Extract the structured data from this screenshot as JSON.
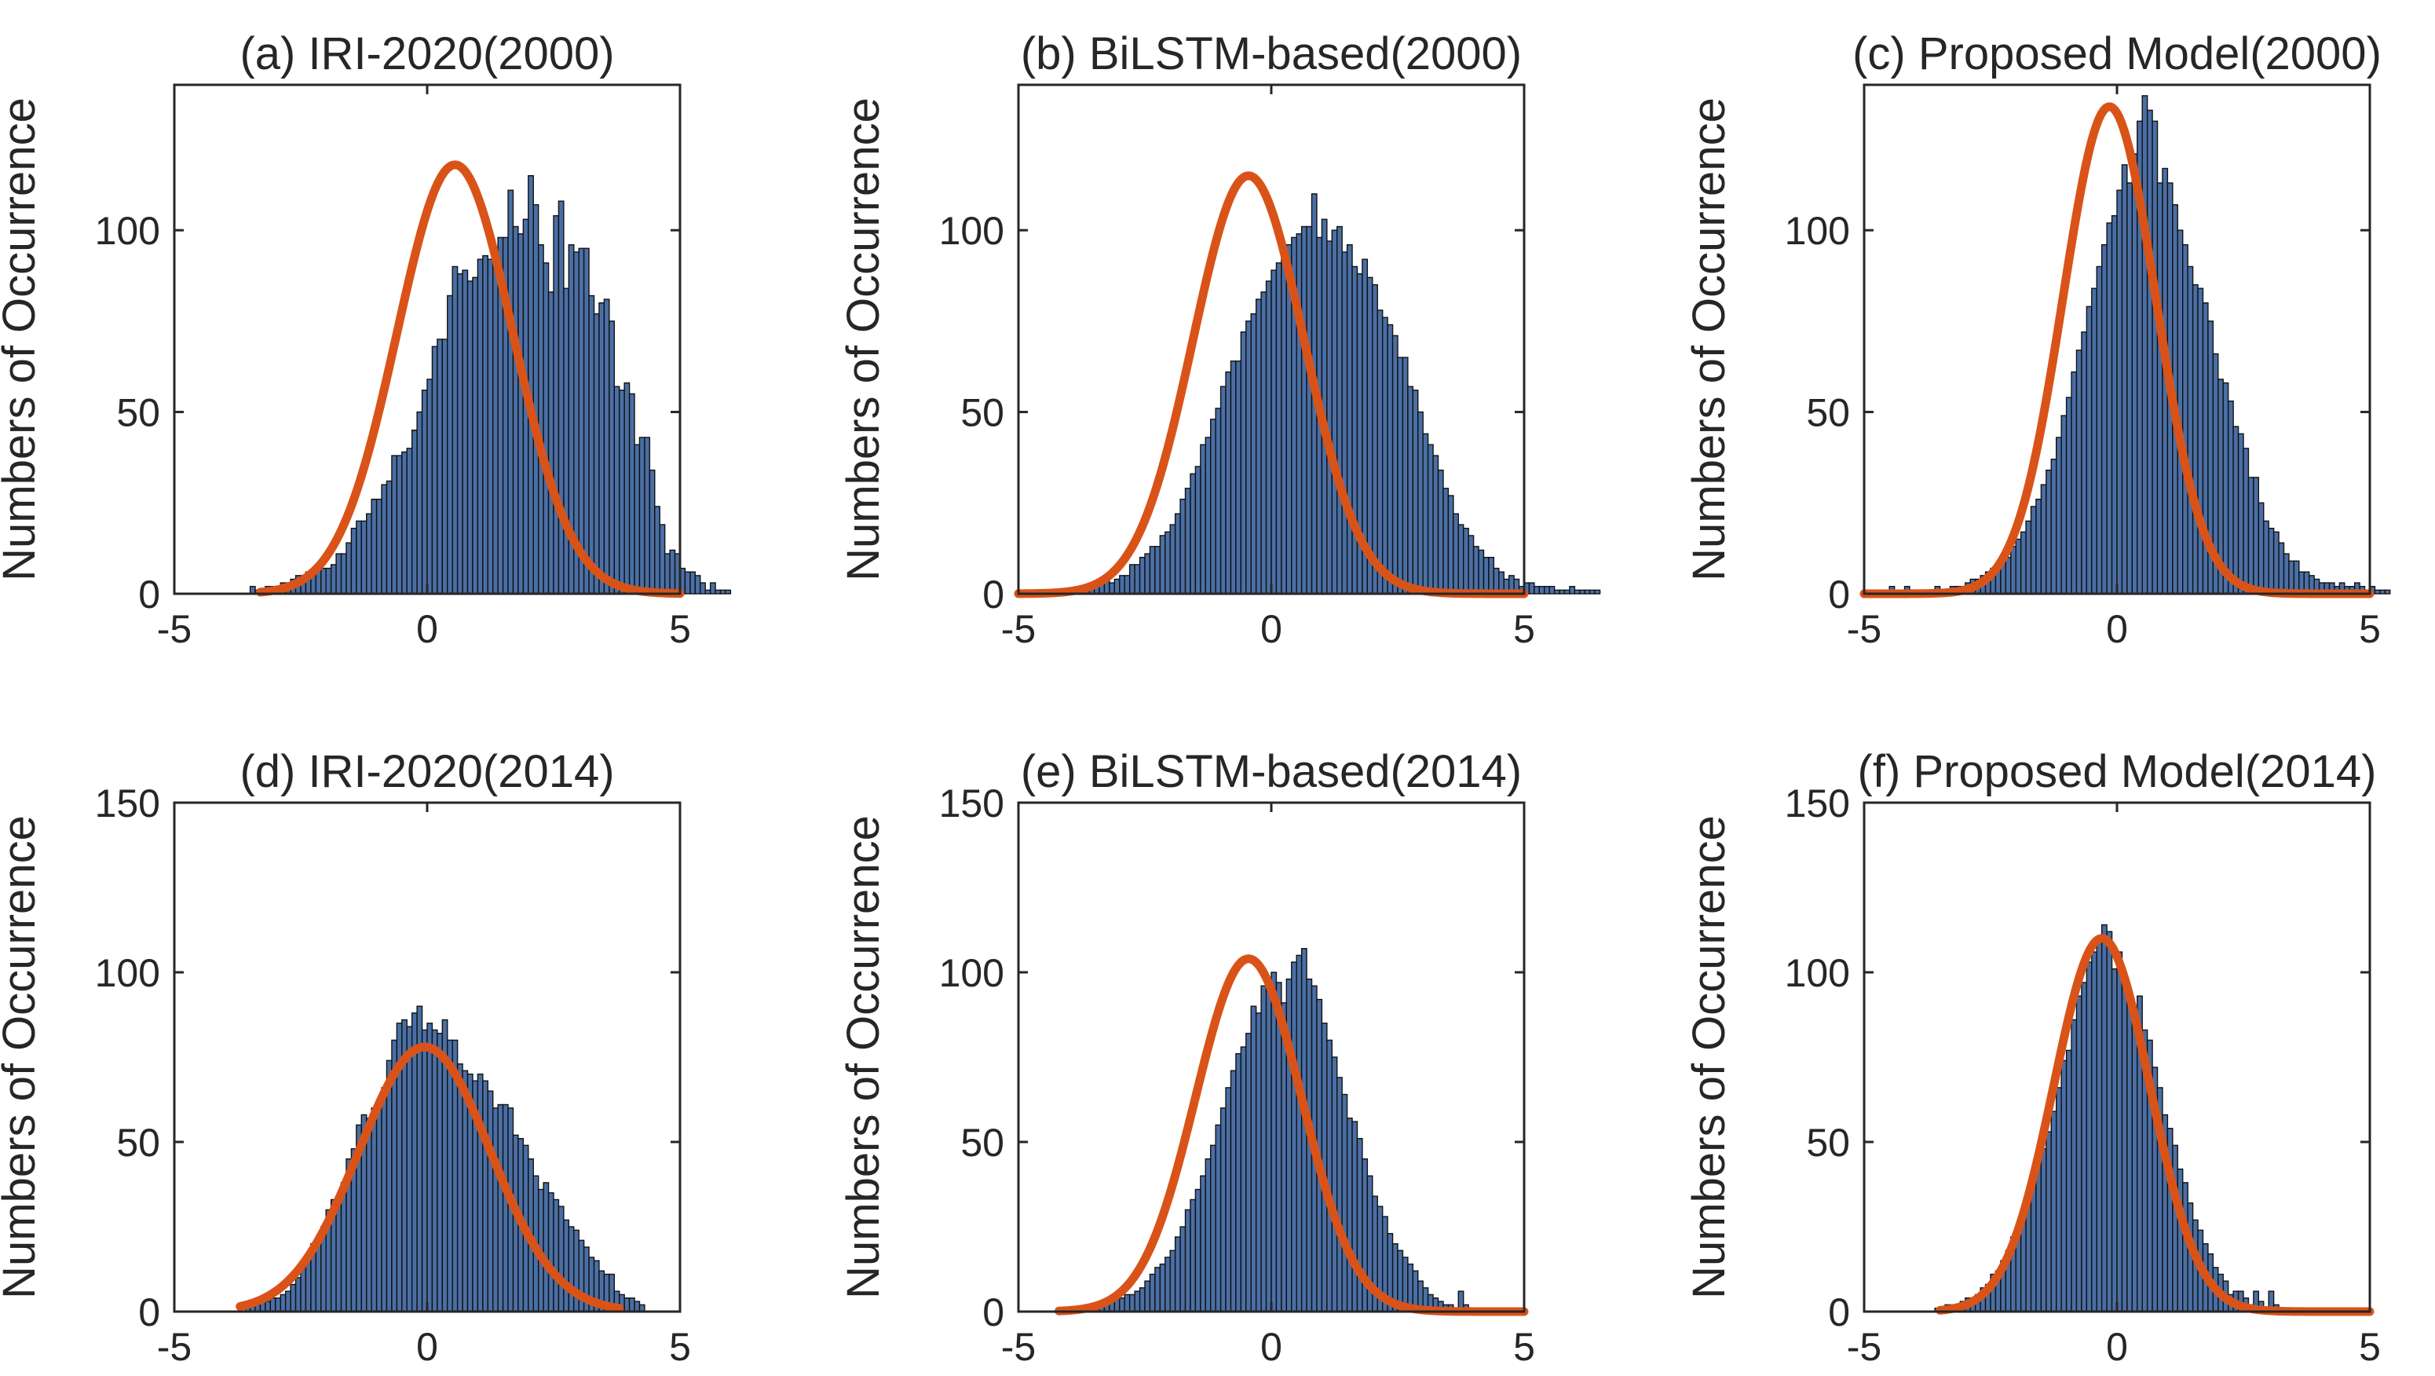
{
  "colors": {
    "bar_face": "#4a6fa5",
    "bar_edge": "#111111",
    "fit_curve": "#d95319",
    "axis": "#262626"
  },
  "chart_data": [
    {
      "type": "bar",
      "title": "(a) IRI-2020(2000)",
      "xlabel": "",
      "ylabel": "Numbers of Occurrence",
      "xlim": [
        -5,
        5
      ],
      "ylim": [
        0,
        140
      ],
      "xticks": [
        "-5",
        "0",
        "5"
      ],
      "yticks": [
        {
          "value": 0,
          "label": "0"
        },
        {
          "value": 50,
          "label": "50"
        },
        {
          "value": 100,
          "label": "100"
        }
      ],
      "bin_start": -3.5,
      "bin_width": 0.1,
      "counts": [
        2,
        1,
        1,
        2,
        2,
        2,
        3,
        3,
        4,
        5,
        5,
        6,
        6,
        7,
        7,
        7,
        8,
        11,
        11,
        14,
        18,
        20,
        20,
        22,
        26,
        26,
        30,
        31,
        38,
        38,
        39,
        40,
        45,
        50,
        56,
        59,
        68,
        70,
        70,
        82,
        90,
        88,
        89,
        86,
        87,
        92,
        93,
        92,
        92,
        98,
        98,
        111,
        101,
        99,
        103,
        115,
        107,
        96,
        91,
        83,
        104,
        108,
        84,
        96,
        94,
        95,
        95,
        82,
        77,
        80,
        81,
        75,
        57,
        56,
        58,
        55,
        41,
        43,
        43,
        34,
        24,
        19,
        11,
        12,
        11,
        7,
        6,
        6,
        5,
        3,
        1,
        3,
        1,
        1,
        1
      ],
      "fit": {
        "mean": 0.55,
        "sigma": 1.15,
        "peak": 118,
        "x_range": [
          -3.3,
          5
        ]
      }
    },
    {
      "type": "bar",
      "title": "(b) BiLSTM-based(2000)",
      "xlabel": "",
      "ylabel": "Numbers of Occurrence",
      "xlim": [
        -5,
        5
      ],
      "ylim": [
        0,
        140
      ],
      "xticks": [
        "-5",
        "0",
        "5"
      ],
      "yticks": [
        {
          "value": 0,
          "label": "0"
        },
        {
          "value": 50,
          "label": "50"
        },
        {
          "value": 100,
          "label": "100"
        }
      ],
      "bin_start": -4.5,
      "bin_width": 0.1,
      "counts": [
        1,
        0,
        1,
        0,
        1,
        1,
        1,
        1,
        2,
        2,
        3,
        3,
        4,
        3,
        4,
        5,
        5,
        8,
        8,
        10,
        11,
        13,
        13,
        16,
        17,
        19,
        22,
        26,
        29,
        33,
        35,
        41,
        43,
        48,
        51,
        57,
        61,
        64,
        64,
        72,
        75,
        77,
        81,
        83,
        86,
        89,
        91,
        94,
        96,
        98,
        99,
        101,
        101,
        110,
        98,
        103,
        97,
        100,
        101,
        94,
        96,
        90,
        88,
        92,
        87,
        85,
        78,
        76,
        74,
        71,
        65,
        65,
        57,
        56,
        50,
        44,
        41,
        38,
        34,
        29,
        27,
        22,
        19,
        18,
        16,
        13,
        12,
        10,
        10,
        7,
        6,
        4,
        5,
        4,
        2,
        3,
        3,
        2,
        2,
        2,
        2,
        1,
        1,
        1,
        2,
        1,
        1,
        1,
        1,
        1
      ],
      "fit": {
        "mean": -0.45,
        "sigma": 1.1,
        "peak": 115,
        "x_range": [
          -5,
          5
        ]
      }
    },
    {
      "type": "bar",
      "title": "(c) Proposed Model(2000)",
      "xlabel": "",
      "ylabel": "Numbers of Occurrence",
      "xlim": [
        -5,
        5
      ],
      "ylim": [
        0,
        140
      ],
      "xticks": [
        "-5",
        "0",
        "5"
      ],
      "yticks": [
        {
          "value": 0,
          "label": "0"
        },
        {
          "value": 50,
          "label": "50"
        },
        {
          "value": 100,
          "label": "100"
        }
      ],
      "bin_start": -4.5,
      "bin_width": 0.1,
      "counts": [
        2,
        1,
        1,
        2,
        1,
        0,
        0,
        1,
        1,
        2,
        0,
        1,
        2,
        2,
        2,
        3,
        4,
        4,
        5,
        6,
        7,
        8,
        9,
        10,
        13,
        15,
        17,
        20,
        24,
        26,
        30,
        34,
        37,
        43,
        49,
        54,
        61,
        67,
        72,
        79,
        84,
        90,
        96,
        102,
        104,
        111,
        118,
        113,
        121,
        130,
        137,
        133,
        130,
        113,
        117,
        113,
        107,
        100,
        96,
        90,
        85,
        84,
        80,
        75,
        66,
        59,
        58,
        53,
        46,
        44,
        40,
        32,
        32,
        25,
        20,
        18,
        17,
        14,
        11,
        9,
        9,
        6,
        6,
        5,
        4,
        3,
        3,
        3,
        2,
        3,
        2,
        2,
        3,
        2,
        1,
        2,
        1,
        1,
        1
      ],
      "fit": {
        "mean": -0.15,
        "sigma": 0.92,
        "peak": 134,
        "x_range": [
          -5,
          5
        ]
      }
    },
    {
      "type": "bar",
      "title": "(d) IRI-2020(2014)",
      "xlabel": "",
      "ylabel": "Numbers of Occurrence",
      "xlim": [
        -5,
        5
      ],
      "ylim": [
        0,
        150
      ],
      "xticks": [
        "-5",
        "0",
        "5"
      ],
      "yticks": [
        {
          "value": 0,
          "label": "0"
        },
        {
          "value": 50,
          "label": "50"
        },
        {
          "value": 100,
          "label": "100"
        },
        {
          "value": 150,
          "label": "150"
        }
      ],
      "bin_start": -3.6,
      "bin_width": 0.1,
      "counts": [
        2,
        2,
        2,
        3,
        3,
        4,
        4,
        5,
        6,
        8,
        10,
        13,
        15,
        20,
        22,
        25,
        30,
        33,
        34,
        38,
        45,
        48,
        55,
        58,
        57,
        60,
        60,
        66,
        74,
        80,
        85,
        86,
        84,
        88,
        90,
        83,
        85,
        83,
        82,
        86,
        80,
        80,
        73,
        71,
        70,
        68,
        70,
        68,
        65,
        60,
        61,
        61,
        60,
        52,
        51,
        49,
        45,
        40,
        36,
        38,
        35,
        33,
        31,
        27,
        25,
        24,
        21,
        19,
        16,
        15,
        12,
        11,
        11,
        6,
        5,
        4,
        4,
        3,
        2
      ],
      "fit": {
        "mean": -0.05,
        "sigma": 1.3,
        "peak": 78,
        "x_range": [
          -3.7,
          3.8
        ]
      }
    },
    {
      "type": "bar",
      "title": "(e) BiLSTM-based(2014)",
      "xlabel": "",
      "ylabel": "Numbers of Occurrence",
      "xlim": [
        -5,
        5
      ],
      "ylim": [
        0,
        150
      ],
      "xticks": [
        "-5",
        "0",
        "5"
      ],
      "yticks": [
        {
          "value": 0,
          "label": "0"
        },
        {
          "value": 50,
          "label": "50"
        },
        {
          "value": 100,
          "label": "100"
        },
        {
          "value": 150,
          "label": "150"
        }
      ],
      "bin_start": -4.2,
      "bin_width": 0.1,
      "counts": [
        1,
        1,
        1,
        1,
        1,
        1,
        1,
        1,
        2,
        2,
        3,
        4,
        4,
        5,
        5,
        6,
        7,
        9,
        11,
        13,
        14,
        16,
        18,
        22,
        25,
        30,
        33,
        36,
        40,
        45,
        49,
        55,
        60,
        66,
        71,
        76,
        78,
        82,
        90,
        88,
        96,
        98,
        100,
        97,
        91,
        98,
        103,
        105,
        107,
        98,
        96,
        92,
        85,
        80,
        75,
        69,
        64,
        57,
        56,
        51,
        45,
        40,
        34,
        31,
        28,
        23,
        20,
        18,
        16,
        14,
        12,
        9,
        7,
        5,
        4,
        3,
        2,
        2,
        1,
        6,
        2,
        1
      ],
      "fit": {
        "mean": -0.45,
        "sigma": 1.05,
        "peak": 104,
        "x_range": [
          -4.2,
          5
        ]
      }
    },
    {
      "type": "bar",
      "title": "(f) Proposed Model(2014)",
      "xlabel": "",
      "ylabel": "Numbers of Occurrence",
      "xlim": [
        -5,
        5
      ],
      "ylim": [
        0,
        150
      ],
      "xticks": [
        "-5",
        "0",
        "5"
      ],
      "yticks": [
        {
          "value": 0,
          "label": "0"
        },
        {
          "value": 50,
          "label": "50"
        },
        {
          "value": 100,
          "label": "100"
        },
        {
          "value": 150,
          "label": "150"
        }
      ],
      "bin_start": -3.6,
      "bin_width": 0.1,
      "counts": [
        1,
        1,
        2,
        2,
        2,
        3,
        4,
        4,
        5,
        7,
        8,
        11,
        12,
        15,
        18,
        22,
        24,
        30,
        35,
        38,
        44,
        48,
        53,
        59,
        66,
        74,
        77,
        86,
        93,
        97,
        103,
        106,
        109,
        114,
        112,
        101,
        106,
        97,
        94,
        89,
        93,
        83,
        80,
        72,
        66,
        58,
        54,
        49,
        42,
        38,
        32,
        27,
        24,
        20,
        17,
        13,
        11,
        9,
        5,
        6,
        6,
        4,
        2,
        6,
        3,
        1,
        6,
        2,
        1,
        1
      ],
      "fit": {
        "mean": -0.3,
        "sigma": 0.95,
        "peak": 110,
        "x_range": [
          -3.5,
          5
        ]
      }
    }
  ]
}
